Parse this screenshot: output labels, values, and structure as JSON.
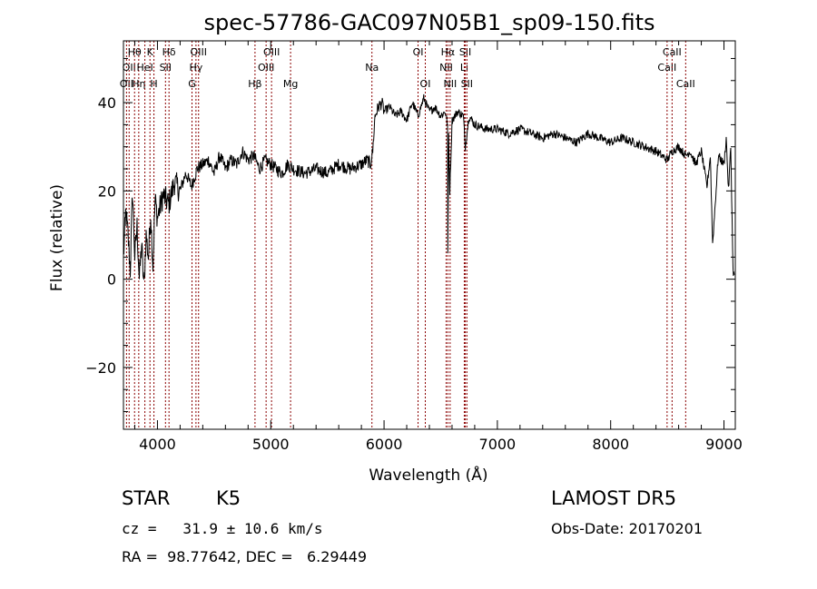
{
  "chart_data": {
    "type": "line",
    "title": "spec-57786-GAC097N05B1_sp09-150.fits",
    "xlabel": "Wavelength (Å)",
    "ylabel": "Flux (relative)",
    "xlim": [
      3700,
      9100
    ],
    "ylim": [
      -34,
      54
    ],
    "x_ticks": [
      4000,
      5000,
      6000,
      7000,
      8000,
      9000
    ],
    "x_tick_labels": [
      "4000",
      "5000",
      "6000",
      "7000",
      "8000",
      "9000"
    ],
    "y_ticks": [
      -20,
      0,
      20,
      40
    ],
    "y_tick_labels": [
      "−20",
      "0",
      "20",
      "40"
    ],
    "grid": false,
    "line_color": "#000000",
    "marker_color": "#8b0000",
    "series": [
      {
        "x": [
          3700,
          3720,
          3740,
          3760,
          3780,
          3800,
          3820,
          3840,
          3860,
          3880,
          3900,
          3920,
          3940,
          3960,
          3980,
          4000,
          4050,
          4100,
          4150,
          4200,
          4250,
          4300,
          4350,
          4400,
          4450,
          4500,
          4550,
          4600,
          4650,
          4700,
          4750,
          4800,
          4850,
          4900,
          4950,
          5000,
          5050,
          5100,
          5150,
          5200,
          5300,
          5400,
          5500,
          5600,
          5700,
          5800,
          5850,
          5880,
          5900,
          5920,
          5950,
          5980,
          6000,
          6050,
          6100,
          6150,
          6200,
          6250,
          6300,
          6350,
          6400,
          6450,
          6500,
          6540,
          6560,
          6563,
          6570,
          6580,
          6600,
          6650,
          6700,
          6717,
          6731,
          6750,
          6800,
          6900,
          7000,
          7100,
          7200,
          7300,
          7400,
          7500,
          7600,
          7700,
          7800,
          7900,
          8000,
          8100,
          8200,
          8300,
          8400,
          8500,
          8542,
          8600,
          8662,
          8700,
          8750,
          8800,
          8850,
          8880,
          8900,
          8950,
          9000,
          9020,
          9040,
          9060,
          9080,
          9090
        ],
        "y": [
          5,
          15,
          10,
          2,
          20,
          5,
          12,
          0,
          8,
          -2,
          10,
          5,
          15,
          3,
          18,
          14,
          19,
          17,
          22,
          20,
          24,
          21,
          25,
          26,
          27,
          24,
          28,
          25,
          27,
          26,
          29,
          27,
          28,
          25,
          27,
          26,
          25,
          24,
          26,
          25,
          24,
          25,
          24,
          26,
          25,
          26,
          27,
          26,
          29,
          37,
          39,
          40,
          38,
          39,
          37,
          38,
          36,
          40,
          37,
          41,
          38,
          39,
          37,
          38,
          35,
          5,
          33,
          20,
          36,
          38,
          37,
          30,
          33,
          37,
          35,
          34,
          34,
          33,
          34,
          33,
          32,
          33,
          32,
          31,
          33,
          32,
          31,
          32,
          31,
          30,
          29,
          27,
          29,
          30,
          28,
          29,
          26,
          29,
          21,
          28,
          8,
          28,
          26,
          32,
          20,
          30,
          2,
          1
        ]
      }
    ],
    "line_markers": [
      {
        "wavelength": 3727,
        "label": "OII",
        "row": 2
      },
      {
        "wavelength": 3750,
        "label": "OII",
        "row": 1
      },
      {
        "wavelength": 3798,
        "label": "Hθ",
        "row": 0
      },
      {
        "wavelength": 3835,
        "label": "Hη",
        "row": 2
      },
      {
        "wavelength": 3889,
        "label": "HeI",
        "row": 1
      },
      {
        "wavelength": 3934,
        "label": "K",
        "row": 0
      },
      {
        "wavelength": 3969,
        "label": "H",
        "row": 2
      },
      {
        "wavelength": 4071,
        "label": "SII",
        "row": 1
      },
      {
        "wavelength": 4102,
        "label": "Hδ",
        "row": 0
      },
      {
        "wavelength": 4305,
        "label": "G",
        "row": 2
      },
      {
        "wavelength": 4340,
        "label": "Hγ",
        "row": 1
      },
      {
        "wavelength": 4363,
        "label": "OIII",
        "row": 0
      },
      {
        "wavelength": 4861,
        "label": "Hβ",
        "row": 2
      },
      {
        "wavelength": 4959,
        "label": "OIII",
        "row": 1
      },
      {
        "wavelength": 5007,
        "label": "OIII",
        "row": 0
      },
      {
        "wavelength": 5175,
        "label": "Mg",
        "row": 2
      },
      {
        "wavelength": 5893,
        "label": "Na",
        "row": 1
      },
      {
        "wavelength": 6300,
        "label": "OI",
        "row": 0
      },
      {
        "wavelength": 6364,
        "label": "OI",
        "row": 2
      },
      {
        "wavelength": 6548,
        "label": "NII",
        "row": 1
      },
      {
        "wavelength": 6563,
        "label": "Hα",
        "row": 0
      },
      {
        "wavelength": 6583,
        "label": "NII",
        "row": 2
      },
      {
        "wavelength": 6708,
        "label": "Li",
        "row": 1
      },
      {
        "wavelength": 6717,
        "label": "SII",
        "row": 0
      },
      {
        "wavelength": 6731,
        "label": "SII",
        "row": 2
      },
      {
        "wavelength": 8498,
        "label": "CaII",
        "row": 1
      },
      {
        "wavelength": 8542,
        "label": "CaII",
        "row": 0
      },
      {
        "wavelength": 8662,
        "label": "CaII",
        "row": 2
      }
    ]
  },
  "footer": {
    "object_class": "STAR",
    "subclass": "K5",
    "survey": "LAMOST DR5",
    "redshift": "cz =   31.9 ± 10.6 km/s",
    "obs_date": "Obs-Date: 20170201",
    "coordinates": "RA =  98.77642, DEC =   6.29449"
  }
}
